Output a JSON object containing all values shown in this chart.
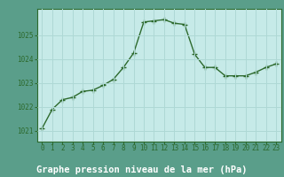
{
  "x": [
    0,
    1,
    2,
    3,
    4,
    5,
    6,
    7,
    8,
    9,
    10,
    11,
    12,
    13,
    14,
    15,
    16,
    17,
    18,
    19,
    20,
    21,
    22,
    23
  ],
  "y": [
    1021.1,
    1021.9,
    1022.3,
    1022.4,
    1022.65,
    1022.7,
    1022.9,
    1023.15,
    1023.65,
    1024.25,
    1025.55,
    1025.6,
    1025.65,
    1025.5,
    1025.45,
    1024.2,
    1023.65,
    1023.65,
    1023.3,
    1023.3,
    1023.3,
    1023.45,
    1023.65,
    1023.8
  ],
  "line_color": "#2d6a2d",
  "marker": "+",
  "marker_size": 4,
  "marker_edge_width": 1.0,
  "plot_bg_color": "#c6eae8",
  "grid_color": "#aed8d5",
  "outer_bg_color": "#5a9e8a",
  "label_bg_color": "#5a9e8a",
  "xlabel": "Graphe pression niveau de la mer (hPa)",
  "xlabel_fontsize": 7.5,
  "xlabel_color": "#ffffff",
  "ytick_labels": [
    "1021",
    "1022",
    "1023",
    "1024",
    "1025"
  ],
  "ylim": [
    1020.55,
    1026.1
  ],
  "yticks": [
    1021,
    1022,
    1023,
    1024,
    1025
  ],
  "xticks": [
    0,
    1,
    2,
    3,
    4,
    5,
    6,
    7,
    8,
    9,
    10,
    11,
    12,
    13,
    14,
    15,
    16,
    17,
    18,
    19,
    20,
    21,
    22,
    23
  ],
  "tick_color": "#2d6a2d",
  "tick_fontsize": 5.5,
  "line_width": 1.0,
  "figsize": [
    3.2,
    2.0
  ],
  "dpi": 100
}
